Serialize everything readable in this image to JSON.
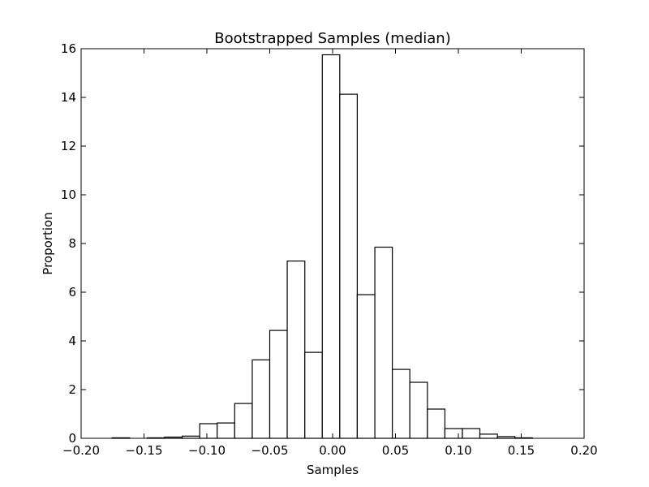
{
  "chart_data": {
    "type": "bar",
    "title": "Bootstrapped Samples (median)",
    "xlabel": "Samples",
    "ylabel": "Proportion",
    "xlim": [
      -0.2,
      0.2
    ],
    "ylim": [
      0,
      16
    ],
    "grid": false,
    "xticks": [
      "−0.20",
      "−0.15",
      "−0.10",
      "−0.05",
      "0.00",
      "0.05",
      "0.10",
      "0.15",
      "0.20"
    ],
    "yticks": [
      "0",
      "2",
      "4",
      "6",
      "8",
      "10",
      "12",
      "14",
      "16"
    ],
    "bins": [
      {
        "x0": -0.1754,
        "x1": -0.1614,
        "value": 0.02
      },
      {
        "x0": -0.1614,
        "x1": -0.1475,
        "value": 0.0
      },
      {
        "x0": -0.1475,
        "x1": -0.1336,
        "value": 0.02
      },
      {
        "x0": -0.1336,
        "x1": -0.1196,
        "value": 0.05
      },
      {
        "x0": -0.1196,
        "x1": -0.1057,
        "value": 0.09
      },
      {
        "x0": -0.1057,
        "x1": -0.0918,
        "value": 0.6
      },
      {
        "x0": -0.0918,
        "x1": -0.0779,
        "value": 0.63
      },
      {
        "x0": -0.0779,
        "x1": -0.0639,
        "value": 1.43
      },
      {
        "x0": -0.0639,
        "x1": -0.05,
        "value": 3.22
      },
      {
        "x0": -0.05,
        "x1": -0.0361,
        "value": 4.43
      },
      {
        "x0": -0.0361,
        "x1": -0.0221,
        "value": 7.28
      },
      {
        "x0": -0.0221,
        "x1": -0.0082,
        "value": 3.53
      },
      {
        "x0": -0.0082,
        "x1": 0.0057,
        "value": 15.75
      },
      {
        "x0": 0.0057,
        "x1": 0.0196,
        "value": 14.13
      },
      {
        "x0": 0.0196,
        "x1": 0.0336,
        "value": 5.9
      },
      {
        "x0": 0.0336,
        "x1": 0.0475,
        "value": 7.85
      },
      {
        "x0": 0.0475,
        "x1": 0.0614,
        "value": 2.83
      },
      {
        "x0": 0.0614,
        "x1": 0.0754,
        "value": 2.3
      },
      {
        "x0": 0.0754,
        "x1": 0.0893,
        "value": 1.2
      },
      {
        "x0": 0.0893,
        "x1": 0.1032,
        "value": 0.4
      },
      {
        "x0": 0.1032,
        "x1": 0.1171,
        "value": 0.4
      },
      {
        "x0": 0.1171,
        "x1": 0.1311,
        "value": 0.17
      },
      {
        "x0": 0.1311,
        "x1": 0.145,
        "value": 0.07
      },
      {
        "x0": 0.145,
        "x1": 0.1589,
        "value": 0.02
      }
    ],
    "bar_fill": "#ffffff",
    "bar_stroke": "#000000"
  }
}
